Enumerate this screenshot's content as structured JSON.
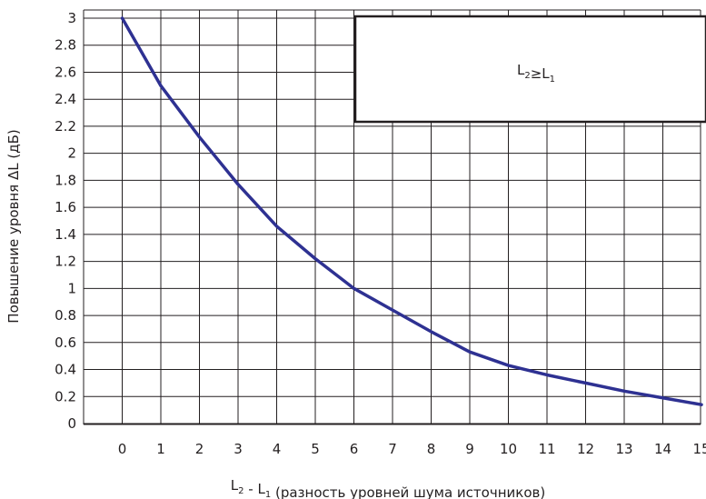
{
  "chart_data": {
    "type": "line",
    "xlabel": "L₂ - L₁ (разность уровней шума источников)",
    "ylabel": "Повышение уровня ΔL (дБ)",
    "annotation": "L₂≥L₁",
    "x": [
      0,
      1,
      2,
      3,
      4,
      5,
      6,
      7,
      8,
      9,
      10,
      11,
      12,
      13,
      14,
      15
    ],
    "series": [
      {
        "values": [
          3.0,
          2.5,
          2.12,
          1.77,
          1.46,
          1.22,
          1.0,
          0.84,
          0.68,
          0.53,
          0.43,
          0.36,
          0.3,
          0.24,
          0.19,
          0.14
        ]
      }
    ],
    "xlim": [
      0,
      15
    ],
    "ylim": [
      0,
      3
    ],
    "x_ticks": [
      "0",
      "1",
      "2",
      "3",
      "4",
      "5",
      "6",
      "7",
      "8",
      "9",
      "10",
      "11",
      "12",
      "13",
      "14",
      "15"
    ],
    "y_ticks": [
      "0",
      "0.2",
      "0.4",
      "0.6",
      "0.8",
      "1",
      "1.2",
      "1.4",
      "1.6",
      "1.8",
      "2",
      "2.2",
      "2.4",
      "2.6",
      "2.8",
      "3"
    ],
    "grid": true,
    "line_color": "#2e3192",
    "grid_color": "#231f20"
  }
}
